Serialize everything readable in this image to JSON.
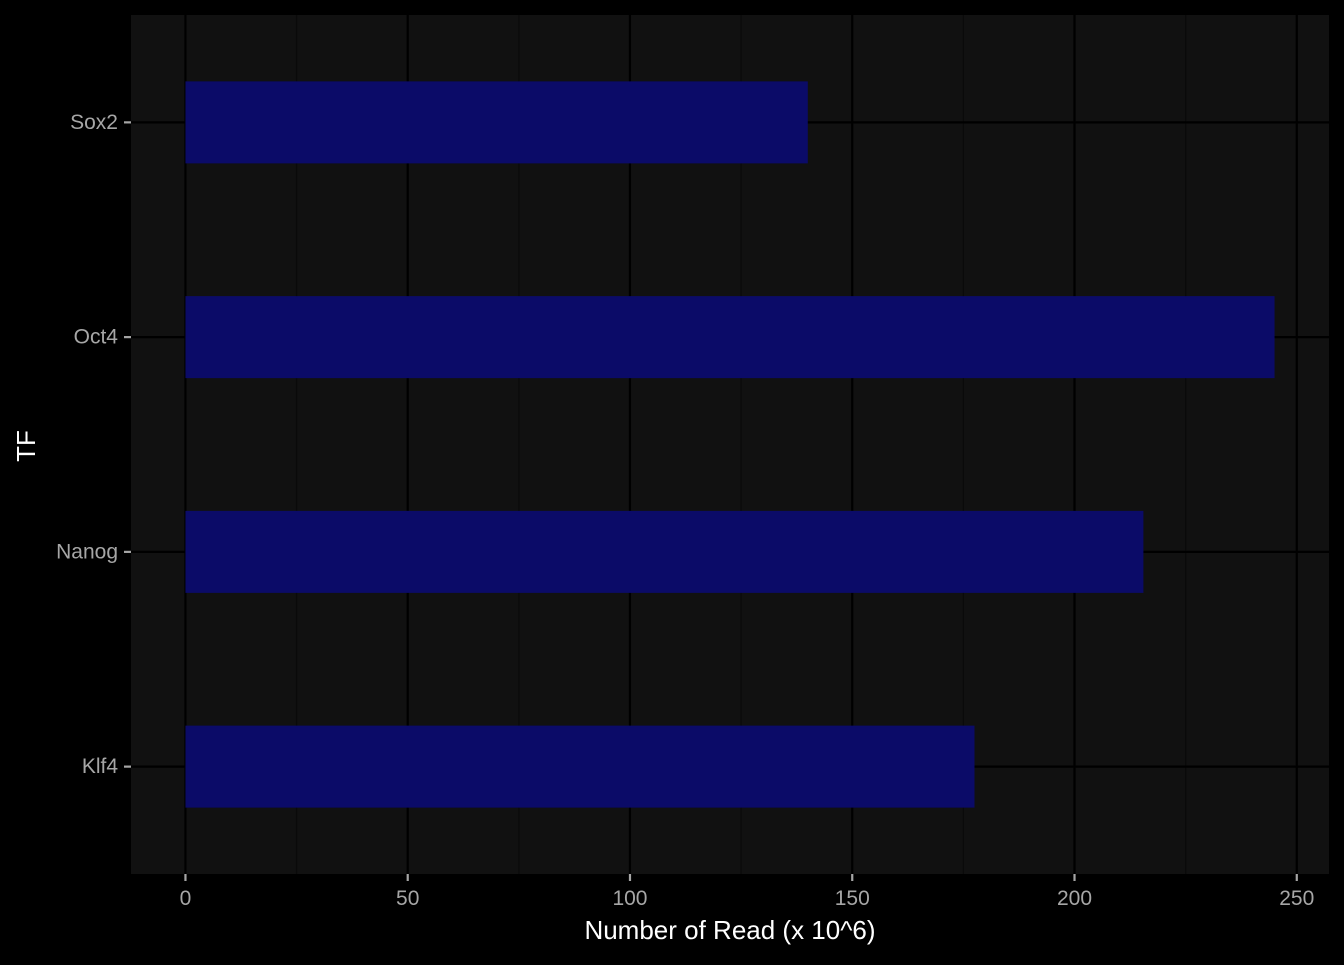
{
  "colors": {
    "page_background": "#000000",
    "panel_background": "#111111",
    "grid_major": "#000000",
    "grid_minor": "#0a0a0a",
    "bar_fill": "#0c0c6e",
    "tick_label": "#a6a6a6",
    "axis_title": "#ffffff"
  },
  "chart_data": {
    "type": "bar",
    "orientation": "horizontal",
    "categories": [
      "Klf4",
      "Nanog",
      "Oct4",
      "Sox2"
    ],
    "values": [
      177.5,
      215.5,
      245,
      140
    ],
    "title": "",
    "xlabel": "Number of Read (x 10^6)",
    "ylabel": "TF",
    "xlim": [
      -12.25,
      257.25
    ],
    "xticks": [
      0,
      50,
      100,
      150,
      200,
      250
    ],
    "xtick_labels": [
      "0",
      "50",
      "100",
      "150",
      "200",
      "250"
    ],
    "grid": true,
    "legend": "none"
  }
}
